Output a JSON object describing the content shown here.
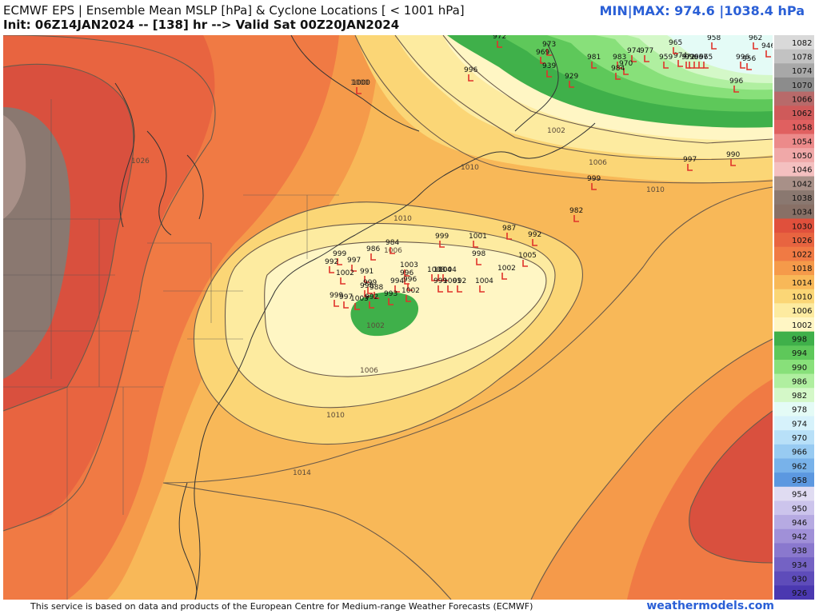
{
  "header": {
    "title": "ECMWF EPS | Ensemble Mean MSLP [hPa] & Cyclone Locations [ < 1001 hPa]",
    "init_line": "Init: 06Z14JAN2024 -- [138] hr --> Valid Sat 00Z20JAN2024",
    "minmax": "MIN|MAX: 974.6 |1038.4 hPa"
  },
  "footer": {
    "attribution": "This service is based on data and products of the European Centre for Medium-range Weather Forecasts (ECMWF)",
    "brand": "weathermodels.com"
  },
  "colorbar": {
    "levels": [
      "1082",
      "1078",
      "1074",
      "1070",
      "1066",
      "1062",
      "1058",
      "1054",
      "1050",
      "1046",
      "1042",
      "1038",
      "1034",
      "1030",
      "1026",
      "1022",
      "1018",
      "1014",
      "1010",
      "1006",
      "1002",
      "998",
      "994",
      "990",
      "986",
      "982",
      "978",
      "974",
      "970",
      "966",
      "962",
      "958",
      "954",
      "950",
      "946",
      "942",
      "938",
      "934",
      "930",
      "926"
    ],
    "colors": [
      "#d9d9d9",
      "#c2c2c2",
      "#a8a8a8",
      "#8c8c8c",
      "#b86a6a",
      "#cf5a5a",
      "#e06060",
      "#ec8a8a",
      "#f0a8a8",
      "#f4c0c0",
      "#a89088",
      "#8a7870",
      "#887066",
      "#e0503c",
      "#e86440",
      "#f07a44",
      "#f59a4a",
      "#f8b858",
      "#fbd676",
      "#fdeba0",
      "#fff6c4",
      "#3fb04a",
      "#5ec85a",
      "#88e07a",
      "#b0efa0",
      "#d4f8c8",
      "#e4fbf6",
      "#d6f2fb",
      "#b8e0f8",
      "#98cbf2",
      "#78b2ea",
      "#5c98e0",
      "#e0dcf2",
      "#ccc4ec",
      "#b6aae2",
      "#a090d8",
      "#8a78ce",
      "#7462c4",
      "#5e4cba",
      "#4a38b0"
    ]
  },
  "isobar_labels": [
    "1026",
    "1010",
    "1010",
    "1010",
    "1006",
    "1006",
    "1006",
    "1010",
    "1014",
    "1002",
    "1002",
    "1000"
  ],
  "cyclone_pressures": [
    "1000",
    "996",
    "973",
    "972",
    "969",
    "939",
    "929",
    "981",
    "983",
    "974",
    "977",
    "970",
    "984",
    "974",
    "965",
    "959",
    "972",
    "996",
    "966",
    "957",
    "965",
    "958",
    "962",
    "946",
    "956",
    "996",
    "996",
    "990",
    "997",
    "999",
    "982",
    "999",
    "1001",
    "987",
    "992",
    "986",
    "984",
    "999",
    "997",
    "992",
    "1002",
    "1003",
    "996",
    "991",
    "999",
    "1005",
    "998",
    "1004",
    "1002",
    "996",
    "994",
    "1003",
    "1004",
    "999",
    "1001",
    "992",
    "1004",
    "1002",
    "993",
    "988",
    "998",
    "999",
    "997",
    "1003",
    "992"
  ]
}
